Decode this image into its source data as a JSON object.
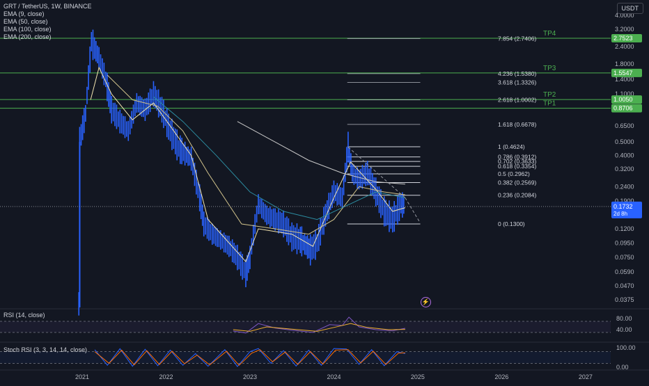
{
  "header": {
    "title": "GRT / TetherUS, 1W, BINANCE",
    "quote_currency": "USDT",
    "indicators": [
      "EMA (9, close)",
      "EMA (50, close)",
      "EMA (100, close)",
      "EMA (200, close)"
    ]
  },
  "last_price": {
    "value": "0.1732",
    "countdown": "2d 8h"
  },
  "colors": {
    "background": "#131722",
    "candle": "#2962ff",
    "ema9": "#f4e6b0",
    "ema50": "#d1c38c",
    "ema100": "#2c8ca0",
    "ema200": "#c8c8c8",
    "tp_line": "#4caf50",
    "fib_line": "#d1d4dc",
    "rsi_line": "#7e57c2",
    "rsi_ma": "#f0b030",
    "stoch_k": "#2962ff",
    "stoch_d": "#ff6d00"
  },
  "panes": {
    "rsi_label": "RSI (14, close)",
    "stoch_label": "Stoch RSI (3, 3, 14, 14, close)"
  },
  "chart_data": {
    "type": "candlestick",
    "scale": "log",
    "x_ticks": [
      "2021",
      "2022",
      "2023",
      "2024",
      "2025",
      "2026",
      "2027"
    ],
    "y_ticks": [
      4.0,
      3.2,
      2.4,
      1.8,
      1.4,
      1.1,
      0.85,
      0.65,
      0.5,
      0.4,
      0.32,
      0.24,
      0.19,
      0.15,
      0.12,
      0.095,
      0.075,
      0.059,
      0.047,
      0.0375
    ],
    "y_tick_labels": [
      "4.0000",
      "3.2000",
      "2.4000",
      "1.8000",
      "1.4000",
      "1.1000",
      "0.8500",
      "0.6500",
      "0.5000",
      "0.4000",
      "0.3200",
      "0.2400",
      "0.1900",
      "0.1500",
      "0.1200",
      "0.0950",
      "0.0750",
      "0.0590",
      "0.0470",
      "0.0375"
    ],
    "ylim": [
      0.033,
      4.6
    ],
    "price_path": [
      {
        "t": 2020.96,
        "p": 0.035
      },
      {
        "t": 2020.97,
        "p": 0.5
      },
      {
        "t": 2021.04,
        "p": 0.8
      },
      {
        "t": 2021.11,
        "p": 2.6
      },
      {
        "t": 2021.2,
        "p": 2.0
      },
      {
        "t": 2021.28,
        "p": 1.4
      },
      {
        "t": 2021.35,
        "p": 0.85
      },
      {
        "t": 2021.45,
        "p": 0.7
      },
      {
        "t": 2021.55,
        "p": 0.6
      },
      {
        "t": 2021.65,
        "p": 0.95
      },
      {
        "t": 2021.75,
        "p": 0.85
      },
      {
        "t": 2021.85,
        "p": 1.1
      },
      {
        "t": 2021.95,
        "p": 0.85
      },
      {
        "t": 2022.05,
        "p": 0.6
      },
      {
        "t": 2022.15,
        "p": 0.45
      },
      {
        "t": 2022.3,
        "p": 0.38
      },
      {
        "t": 2022.4,
        "p": 0.2
      },
      {
        "t": 2022.45,
        "p": 0.13
      },
      {
        "t": 2022.55,
        "p": 0.11
      },
      {
        "t": 2022.65,
        "p": 0.1
      },
      {
        "t": 2022.75,
        "p": 0.09
      },
      {
        "t": 2022.85,
        "p": 0.075
      },
      {
        "t": 2022.95,
        "p": 0.058
      },
      {
        "t": 2023.0,
        "p": 0.075
      },
      {
        "t": 2023.06,
        "p": 0.13
      },
      {
        "t": 2023.1,
        "p": 0.18
      },
      {
        "t": 2023.2,
        "p": 0.15
      },
      {
        "t": 2023.3,
        "p": 0.14
      },
      {
        "t": 2023.4,
        "p": 0.13
      },
      {
        "t": 2023.5,
        "p": 0.105
      },
      {
        "t": 2023.6,
        "p": 0.1
      },
      {
        "t": 2023.72,
        "p": 0.085
      },
      {
        "t": 2023.8,
        "p": 0.095
      },
      {
        "t": 2023.9,
        "p": 0.15
      },
      {
        "t": 2024.0,
        "p": 0.22
      },
      {
        "t": 2024.1,
        "p": 0.2
      },
      {
        "t": 2024.17,
        "p": 0.46
      },
      {
        "t": 2024.22,
        "p": 0.3
      },
      {
        "t": 2024.3,
        "p": 0.27
      },
      {
        "t": 2024.4,
        "p": 0.3
      },
      {
        "t": 2024.5,
        "p": 0.22
      },
      {
        "t": 2024.6,
        "p": 0.16
      },
      {
        "t": 2024.7,
        "p": 0.14
      },
      {
        "t": 2024.8,
        "p": 0.18
      },
      {
        "t": 2024.85,
        "p": 0.173
      }
    ],
    "emas": [
      {
        "name": "EMA 9",
        "color": "#f4e6b0",
        "points": [
          {
            "t": 2021.1,
            "p": 1.0
          },
          {
            "t": 2021.2,
            "p": 1.7
          },
          {
            "t": 2021.35,
            "p": 1.1
          },
          {
            "t": 2021.6,
            "p": 0.72
          },
          {
            "t": 2021.85,
            "p": 0.95
          },
          {
            "t": 2022.05,
            "p": 0.65
          },
          {
            "t": 2022.3,
            "p": 0.4
          },
          {
            "t": 2022.5,
            "p": 0.14
          },
          {
            "t": 2022.95,
            "p": 0.07
          },
          {
            "t": 2023.1,
            "p": 0.12
          },
          {
            "t": 2023.5,
            "p": 0.11
          },
          {
            "t": 2023.75,
            "p": 0.09
          },
          {
            "t": 2024.0,
            "p": 0.2
          },
          {
            "t": 2024.2,
            "p": 0.36
          },
          {
            "t": 2024.5,
            "p": 0.23
          },
          {
            "t": 2024.7,
            "p": 0.16
          },
          {
            "t": 2024.85,
            "p": 0.17
          }
        ]
      },
      {
        "name": "EMA 50",
        "color": "#d1c38c",
        "points": [
          {
            "t": 2021.3,
            "p": 1.5
          },
          {
            "t": 2021.6,
            "p": 1.0
          },
          {
            "t": 2021.9,
            "p": 0.9
          },
          {
            "t": 2022.2,
            "p": 0.6
          },
          {
            "t": 2022.5,
            "p": 0.3
          },
          {
            "t": 2022.9,
            "p": 0.13
          },
          {
            "t": 2023.3,
            "p": 0.12
          },
          {
            "t": 2023.7,
            "p": 0.11
          },
          {
            "t": 2024.0,
            "p": 0.14
          },
          {
            "t": 2024.3,
            "p": 0.24
          },
          {
            "t": 2024.6,
            "p": 0.22
          },
          {
            "t": 2024.85,
            "p": 0.21
          }
        ]
      },
      {
        "name": "EMA 100",
        "color": "#2c8ca0",
        "points": [
          {
            "t": 2021.85,
            "p": 1.05
          },
          {
            "t": 2022.2,
            "p": 0.7
          },
          {
            "t": 2022.6,
            "p": 0.4
          },
          {
            "t": 2023.0,
            "p": 0.22
          },
          {
            "t": 2023.4,
            "p": 0.16
          },
          {
            "t": 2023.8,
            "p": 0.14
          },
          {
            "t": 2024.1,
            "p": 0.17
          },
          {
            "t": 2024.5,
            "p": 0.22
          },
          {
            "t": 2024.85,
            "p": 0.2
          }
        ]
      },
      {
        "name": "EMA 200",
        "color": "#c8c8c8",
        "points": [
          {
            "t": 2022.85,
            "p": 0.7
          },
          {
            "t": 2023.3,
            "p": 0.5
          },
          {
            "t": 2023.7,
            "p": 0.37
          },
          {
            "t": 2024.1,
            "p": 0.3
          },
          {
            "t": 2024.5,
            "p": 0.26
          },
          {
            "t": 2024.85,
            "p": 0.25
          }
        ]
      }
    ],
    "take_profit_levels": [
      {
        "name": "TP1",
        "price": 0.8706,
        "label": "0.8706"
      },
      {
        "name": "TP2",
        "price": 1.005,
        "label": "1.0050"
      },
      {
        "name": "TP3",
        "price": 1.5547,
        "label": "1.5547"
      },
      {
        "name": "TP4",
        "price": 2.7523,
        "label": "2.7523"
      }
    ],
    "fib_levels": [
      {
        "label": "7.854 (2.7406)",
        "price": 2.7406
      },
      {
        "label": "4.236 (1.5380)",
        "price": 1.538
      },
      {
        "label": "3.618 (1.3326)",
        "price": 1.3326
      },
      {
        "label": "2.618 (1.0002)",
        "price": 1.0002
      },
      {
        "label": "1.618 (0.6678)",
        "price": 0.6678
      },
      {
        "label": "1 (0.4624)",
        "price": 0.4624
      },
      {
        "label": "0.786 (0.3912)",
        "price": 0.3912
      },
      {
        "label": "0.702 (0.3633)",
        "price": 0.3633
      },
      {
        "label": "0.618 (0.3354)",
        "price": 0.3354
      },
      {
        "label": "0.5 (0.2962)",
        "price": 0.2962
      },
      {
        "label": "0.382 (0.2569)",
        "price": 0.2569
      },
      {
        "label": "0.236 (0.2084)",
        "price": 0.2084
      },
      {
        "label": "0 (0.1300)",
        "price": 0.13
      }
    ],
    "fib_range": {
      "start": 2024.16,
      "end": 2025.03
    },
    "visible_fib_lines": [
      0.4624,
      0.3912,
      0.3633,
      0.3354,
      0.2962,
      0.2569,
      0.2084,
      0.13
    ],
    "trendline": {
      "from": {
        "t": 2024.17,
        "p": 0.46
      },
      "to": {
        "t": 2024.85,
        "p": 0.2
      },
      "dashed_to": {
        "t": 2025.02,
        "p": 0.135
      }
    },
    "rsi": {
      "levels": [
        {
          "value": 80,
          "label": "80.00"
        },
        {
          "value": 40,
          "label": "40.00"
        }
      ],
      "overbought": 70,
      "oversold": 30,
      "path": [
        {
          "t": 2022.8,
          "v": 35
        },
        {
          "t": 2022.95,
          "v": 28
        },
        {
          "t": 2023.1,
          "v": 62
        },
        {
          "t": 2023.3,
          "v": 46
        },
        {
          "t": 2023.5,
          "v": 38
        },
        {
          "t": 2023.75,
          "v": 30
        },
        {
          "t": 2023.95,
          "v": 58
        },
        {
          "t": 2024.1,
          "v": 55
        },
        {
          "t": 2024.18,
          "v": 85
        },
        {
          "t": 2024.3,
          "v": 50
        },
        {
          "t": 2024.5,
          "v": 40
        },
        {
          "t": 2024.7,
          "v": 36
        },
        {
          "t": 2024.85,
          "v": 45
        }
      ],
      "ma_path": [
        {
          "t": 2022.8,
          "v": 40
        },
        {
          "t": 2023.0,
          "v": 34
        },
        {
          "t": 2023.2,
          "v": 50
        },
        {
          "t": 2023.5,
          "v": 42
        },
        {
          "t": 2023.8,
          "v": 34
        },
        {
          "t": 2024.0,
          "v": 48
        },
        {
          "t": 2024.2,
          "v": 62
        },
        {
          "t": 2024.4,
          "v": 48
        },
        {
          "t": 2024.65,
          "v": 40
        },
        {
          "t": 2024.85,
          "v": 41
        }
      ]
    },
    "stoch_rsi": {
      "levels": [
        {
          "value": 100,
          "label": "100.00"
        },
        {
          "value": 0,
          "label": "0.00"
        }
      ],
      "upper_band": 80,
      "lower_band": 20,
      "k_path": [
        {
          "t": 2021.15,
          "v": 90
        },
        {
          "t": 2021.3,
          "v": 10
        },
        {
          "t": 2021.45,
          "v": 95
        },
        {
          "t": 2021.6,
          "v": 5
        },
        {
          "t": 2021.75,
          "v": 92
        },
        {
          "t": 2021.9,
          "v": 8
        },
        {
          "t": 2022.05,
          "v": 88
        },
        {
          "t": 2022.2,
          "v": 10
        },
        {
          "t": 2022.35,
          "v": 70
        },
        {
          "t": 2022.5,
          "v": 5
        },
        {
          "t": 2022.7,
          "v": 90
        },
        {
          "t": 2022.85,
          "v": 4
        },
        {
          "t": 2023.0,
          "v": 80
        },
        {
          "t": 2023.1,
          "v": 96
        },
        {
          "t": 2023.25,
          "v": 20
        },
        {
          "t": 2023.4,
          "v": 85
        },
        {
          "t": 2023.55,
          "v": 6
        },
        {
          "t": 2023.7,
          "v": 88
        },
        {
          "t": 2023.85,
          "v": 10
        },
        {
          "t": 2024.0,
          "v": 96
        },
        {
          "t": 2024.15,
          "v": 94
        },
        {
          "t": 2024.3,
          "v": 15
        },
        {
          "t": 2024.45,
          "v": 90
        },
        {
          "t": 2024.6,
          "v": 8
        },
        {
          "t": 2024.75,
          "v": 80
        },
        {
          "t": 2024.85,
          "v": 70
        }
      ],
      "d_path": [
        {
          "t": 2021.15,
          "v": 80
        },
        {
          "t": 2021.32,
          "v": 20
        },
        {
          "t": 2021.47,
          "v": 88
        },
        {
          "t": 2021.62,
          "v": 12
        },
        {
          "t": 2021.77,
          "v": 85
        },
        {
          "t": 2021.92,
          "v": 14
        },
        {
          "t": 2022.07,
          "v": 82
        },
        {
          "t": 2022.22,
          "v": 18
        },
        {
          "t": 2022.37,
          "v": 62
        },
        {
          "t": 2022.52,
          "v": 12
        },
        {
          "t": 2022.72,
          "v": 82
        },
        {
          "t": 2022.87,
          "v": 10
        },
        {
          "t": 2023.02,
          "v": 72
        },
        {
          "t": 2023.12,
          "v": 90
        },
        {
          "t": 2023.27,
          "v": 28
        },
        {
          "t": 2023.42,
          "v": 78
        },
        {
          "t": 2023.57,
          "v": 14
        },
        {
          "t": 2023.72,
          "v": 80
        },
        {
          "t": 2023.87,
          "v": 16
        },
        {
          "t": 2024.02,
          "v": 88
        },
        {
          "t": 2024.17,
          "v": 90
        },
        {
          "t": 2024.32,
          "v": 22
        },
        {
          "t": 2024.47,
          "v": 82
        },
        {
          "t": 2024.62,
          "v": 14
        },
        {
          "t": 2024.77,
          "v": 72
        },
        {
          "t": 2024.85,
          "v": 74
        }
      ]
    }
  }
}
